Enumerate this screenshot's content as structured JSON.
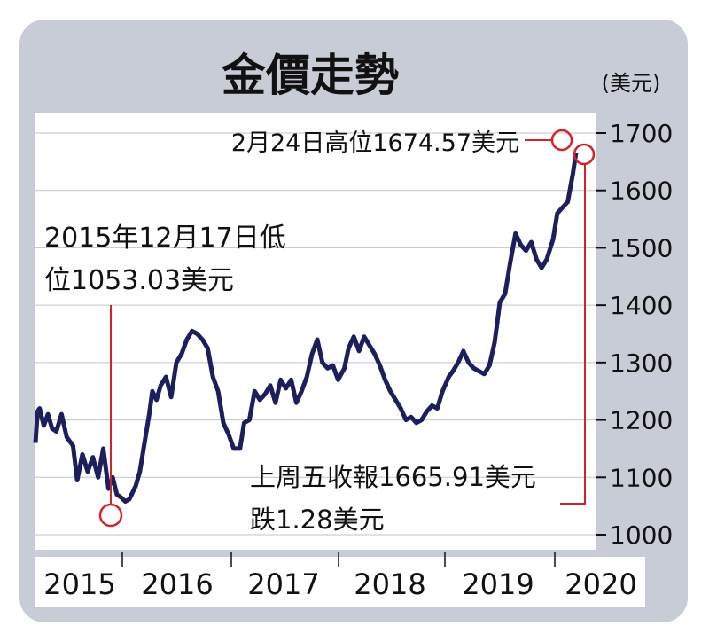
{
  "chart_data": {
    "type": "line",
    "title": "金價走勢",
    "unit": "(美元)",
    "ylim": [
      1000,
      1700
    ],
    "y_ticks": [
      "1000",
      "1100",
      "1200",
      "1300",
      "1400",
      "1500",
      "1600",
      "1700"
    ],
    "year_labels": [
      "2015",
      "2016",
      "2017",
      "2018",
      "2019",
      "2020"
    ],
    "annotations": {
      "high": "2月24日高位1674.57美元",
      "low_line1": "2015年12月17日低",
      "low_line2": "位1053.03美元",
      "close_line1": "上周五收報1665.91美元",
      "close_line2": "跌1.28美元"
    },
    "colors": {
      "frame": "#c8ccd6",
      "line": "#1c1f5c",
      "marker": "#d2232a",
      "grid": "#bfc3cc"
    },
    "series": [
      {
        "x": [
          2015.0,
          2015.02,
          2015.04,
          2015.08,
          2015.12,
          2015.16,
          2015.2,
          2015.25,
          2015.3,
          2015.36,
          2015.4,
          2015.45,
          2015.5,
          2015.55,
          2015.6,
          2015.65,
          2015.7,
          2015.74,
          2015.78,
          2015.82,
          2015.86,
          2015.9,
          2015.96,
          2016.0,
          2016.05,
          2016.09,
          2016.12,
          2016.16,
          2016.2,
          2016.25,
          2016.3,
          2016.35,
          2016.4,
          2016.45,
          2016.5,
          2016.55,
          2016.6,
          2016.65,
          2016.7,
          2016.75,
          2016.8,
          2016.85,
          2016.9,
          2016.96,
          2017.0,
          2017.05,
          2017.1,
          2017.15,
          2017.2,
          2017.25,
          2017.3,
          2017.35,
          2017.4,
          2017.45,
          2017.5,
          2017.55,
          2017.6,
          2017.65,
          2017.7,
          2017.75,
          2017.8,
          2017.85,
          2017.9,
          2017.96,
          2018.0,
          2018.05,
          2018.1,
          2018.15,
          2018.2,
          2018.25,
          2018.3,
          2018.35,
          2018.4,
          2018.45,
          2018.5,
          2018.55,
          2018.6,
          2018.65,
          2018.7,
          2018.75,
          2018.8,
          2018.85,
          2018.9,
          2018.96,
          2019.0,
          2019.05,
          2019.1,
          2019.15,
          2019.2,
          2019.25,
          2019.3,
          2019.35,
          2019.4,
          2019.45,
          2019.5,
          2019.55,
          2019.6,
          2019.65,
          2019.7,
          2019.75,
          2019.8,
          2019.85,
          2019.9,
          2019.96,
          2020.0,
          2020.05,
          2020.1,
          2020.15,
          2020.18
        ],
        "y": [
          1160,
          1215,
          1220,
          1190,
          1210,
          1185,
          1180,
          1210,
          1170,
          1155,
          1095,
          1140,
          1110,
          1135,
          1100,
          1150,
          1080,
          1100,
          1070,
          1065,
          1058,
          1062,
          1085,
          1110,
          1165,
          1210,
          1250,
          1235,
          1260,
          1275,
          1240,
          1300,
          1315,
          1340,
          1355,
          1350,
          1340,
          1325,
          1275,
          1250,
          1195,
          1175,
          1150,
          1150,
          1195,
          1200,
          1250,
          1235,
          1245,
          1260,
          1230,
          1270,
          1255,
          1270,
          1230,
          1250,
          1275,
          1315,
          1340,
          1300,
          1290,
          1295,
          1270,
          1290,
          1325,
          1345,
          1320,
          1345,
          1330,
          1315,
          1295,
          1270,
          1250,
          1235,
          1220,
          1200,
          1205,
          1195,
          1200,
          1215,
          1225,
          1220,
          1250,
          1275,
          1285,
          1300,
          1320,
          1300,
          1290,
          1285,
          1280,
          1295,
          1335,
          1405,
          1420,
          1475,
          1525,
          1505,
          1495,
          1510,
          1480,
          1465,
          1480,
          1515,
          1560,
          1570,
          1580,
          1630,
          1666
        ]
      }
    ]
  }
}
